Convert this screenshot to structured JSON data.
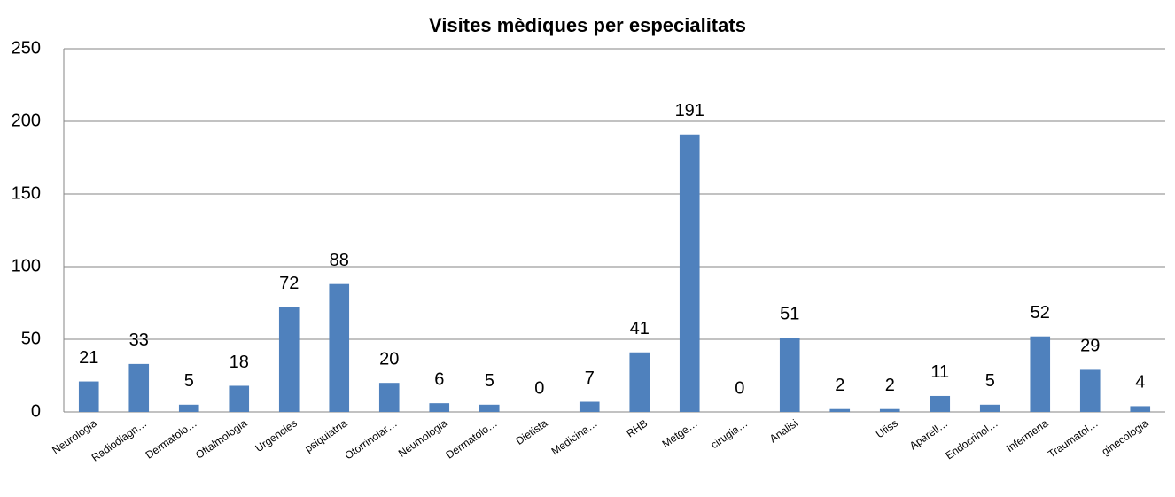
{
  "chart_data": {
    "type": "bar",
    "title": "Visites mèdiques per especialitats",
    "categories": [
      "Neurologia",
      "Radiodiagn…",
      "Dermatolo…",
      "Oftalmologia",
      "Urgencies",
      "psiquiatria",
      "Otorrinolar…",
      "Neumologia",
      "Dermatolo…",
      "Dietista",
      "Medicina…",
      "RHB",
      "Metge…",
      "cirugia…",
      "Analisi",
      null,
      "Ufiss",
      "Aparell…",
      "Endocrinol…",
      "Infermeria",
      "Traumatol…",
      "ginecologia"
    ],
    "values": [
      21,
      33,
      5,
      18,
      72,
      88,
      20,
      6,
      5,
      0,
      7,
      41,
      191,
      0,
      51,
      2,
      2,
      11,
      5,
      52,
      29,
      4
    ],
    "color": "#4f81bd",
    "ylim": [
      0,
      250
    ],
    "yticks": [
      0,
      50,
      100,
      150,
      200,
      250
    ],
    "grid": true
  }
}
